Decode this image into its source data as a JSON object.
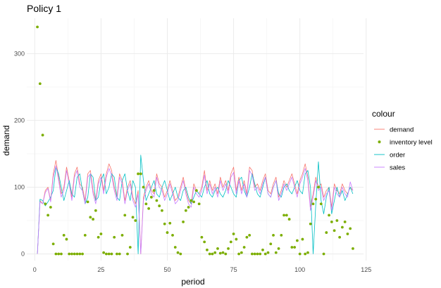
{
  "chart_data": {
    "type": "line",
    "title": "Policy 1",
    "xlabel": "period",
    "ylabel": "demand",
    "xlim": [
      -3,
      124
    ],
    "ylim": [
      -10,
      353
    ],
    "x_ticks": [
      0,
      25,
      50,
      75,
      100,
      125
    ],
    "y_ticks": [
      0,
      100,
      200,
      300
    ],
    "grid": true,
    "legend_title": "colour",
    "legend_position": "right",
    "series": [
      {
        "name": "demand",
        "type": "line",
        "color": "#F8766D",
        "x": [
          1,
          2,
          3,
          4,
          5,
          6,
          7,
          8,
          9,
          10,
          11,
          12,
          13,
          14,
          15,
          16,
          17,
          18,
          19,
          20,
          21,
          22,
          23,
          24,
          25,
          26,
          27,
          28,
          29,
          30,
          31,
          32,
          33,
          34,
          35,
          36,
          37,
          38,
          39,
          40,
          41,
          42,
          43,
          44,
          45,
          46,
          47,
          48,
          49,
          50,
          51,
          52,
          53,
          54,
          55,
          56,
          57,
          58,
          59,
          60,
          61,
          62,
          63,
          64,
          65,
          66,
          67,
          68,
          69,
          70,
          71,
          72,
          73,
          74,
          75,
          76,
          77,
          78,
          79,
          80,
          81,
          82,
          83,
          84,
          85,
          86,
          87,
          88,
          89,
          90,
          91,
          92,
          93,
          94,
          95,
          96,
          97,
          98,
          99,
          100,
          101,
          102,
          103,
          104,
          105,
          106,
          107,
          108,
          109,
          110,
          111,
          112,
          113,
          114,
          115,
          116,
          117,
          118,
          119,
          120
        ],
        "y": [
          0,
          80,
          75,
          95,
          100,
          80,
          120,
          140,
          115,
          90,
          100,
          130,
          110,
          85,
          120,
          130,
          105,
          100,
          80,
          120,
          125,
          95,
          80,
          110,
          120,
          95,
          120,
          135,
          125,
          100,
          85,
          120,
          110,
          80,
          100,
          110,
          85,
          75,
          95,
          0,
          85,
          100,
          110,
          95,
          90,
          120,
          105,
          100,
          85,
          95,
          110,
          95,
          80,
          85,
          100,
          115,
          95,
          80,
          75,
          105,
          95,
          90,
          100,
          125,
          95,
          110,
          95,
          105,
          90,
          115,
          100,
          110,
          95,
          120,
          130,
          95,
          115,
          95,
          110,
          90,
          130,
          125,
          100,
          105,
          95,
          110,
          120,
          95,
          90,
          105,
          115,
          85,
          95,
          110,
          100,
          110,
          120,
          105,
          90,
          110,
          120,
          135,
          115,
          70,
          90,
          115,
          100,
          105,
          85,
          95,
          100,
          70,
          105,
          95,
          90,
          105,
          95,
          90,
          100,
          95
        ]
      },
      {
        "name": "inventory level",
        "type": "scatter",
        "color": "#7CAE00",
        "x": [
          1,
          2,
          3,
          4,
          5,
          6,
          7,
          8,
          9,
          10,
          11,
          12,
          13,
          14,
          15,
          16,
          17,
          18,
          19,
          20,
          21,
          22,
          23,
          24,
          25,
          26,
          27,
          28,
          29,
          30,
          31,
          32,
          33,
          34,
          35,
          36,
          37,
          38,
          39,
          40,
          41,
          42,
          43,
          44,
          45,
          46,
          47,
          48,
          49,
          50,
          51,
          52,
          53,
          54,
          55,
          56,
          57,
          58,
          59,
          60,
          61,
          62,
          63,
          64,
          65,
          66,
          67,
          68,
          69,
          70,
          71,
          72,
          73,
          74,
          75,
          76,
          77,
          78,
          79,
          80,
          81,
          82,
          83,
          84,
          85,
          86,
          87,
          88,
          89,
          90,
          91,
          92,
          93,
          94,
          95,
          96,
          97,
          98,
          99,
          100,
          101,
          102,
          103,
          104,
          105,
          106,
          107,
          108,
          109,
          110,
          111,
          112,
          113,
          114,
          115,
          116,
          117,
          118,
          119,
          120
        ],
        "y": [
          340,
          255,
          178,
          75,
          58,
          70,
          15,
          0,
          0,
          0,
          28,
          22,
          0,
          0,
          0,
          0,
          0,
          0,
          28,
          78,
          55,
          52,
          65,
          25,
          30,
          2,
          0,
          0,
          0,
          25,
          0,
          0,
          28,
          58,
          0,
          10,
          55,
          50,
          120,
          120,
          100,
          75,
          68,
          85,
          95,
          80,
          72,
          65,
          45,
          32,
          46,
          28,
          10,
          2,
          0,
          48,
          65,
          70,
          80,
          78,
          95,
          75,
          25,
          18,
          6,
          0,
          0,
          2,
          8,
          1,
          2,
          0,
          8,
          18,
          30,
          22,
          0,
          2,
          10,
          25,
          28,
          0,
          0,
          0,
          0,
          6,
          0,
          2,
          15,
          28,
          2,
          8,
          28,
          58,
          58,
          52,
          10,
          10,
          20,
          0,
          22,
          0,
          2,
          45,
          75,
          82,
          100,
          75,
          0,
          32,
          58,
          48,
          35,
          50,
          25,
          40,
          48,
          30,
          38,
          8
        ]
      },
      {
        "name": "order",
        "type": "line",
        "color": "#00BFC4",
        "x": [
          1,
          2,
          3,
          4,
          5,
          6,
          7,
          8,
          9,
          10,
          11,
          12,
          13,
          14,
          15,
          16,
          17,
          18,
          19,
          20,
          21,
          22,
          23,
          24,
          25,
          26,
          27,
          28,
          29,
          30,
          31,
          32,
          33,
          34,
          35,
          36,
          37,
          38,
          39,
          40,
          41,
          42,
          43,
          44,
          45,
          46,
          47,
          48,
          49,
          50,
          51,
          52,
          53,
          54,
          55,
          56,
          57,
          58,
          59,
          60,
          61,
          62,
          63,
          64,
          65,
          66,
          67,
          68,
          69,
          70,
          71,
          72,
          73,
          74,
          75,
          76,
          77,
          78,
          79,
          80,
          81,
          82,
          83,
          84,
          85,
          86,
          87,
          88,
          89,
          90,
          91,
          92,
          93,
          94,
          95,
          96,
          97,
          98,
          99,
          100,
          101,
          102,
          103,
          104,
          105,
          106,
          107,
          108,
          109,
          110,
          111,
          112,
          113,
          114,
          115,
          116,
          117,
          118,
          119,
          120
        ],
        "y": [
          0,
          82,
          80,
          72,
          78,
          85,
          95,
          130,
          120,
          100,
          80,
          95,
          110,
          90,
          85,
          115,
          120,
          95,
          75,
          85,
          120,
          115,
          80,
          85,
          110,
          120,
          90,
          100,
          120,
          115,
          85,
          80,
          110,
          120,
          95,
          80,
          110,
          100,
          0,
          148,
          110,
          80,
          90,
          100,
          110,
          90,
          85,
          100,
          110,
          95,
          80,
          90,
          100,
          85,
          80,
          95,
          100,
          85,
          75,
          85,
          95,
          90,
          85,
          100,
          110,
          90,
          85,
          95,
          100,
          90,
          85,
          95,
          110,
          100,
          90,
          85,
          110,
          115,
          95,
          85,
          100,
          120,
          105,
          90,
          85,
          100,
          115,
          90,
          85,
          100,
          110,
          90,
          85,
          100,
          105,
          95,
          90,
          100,
          110,
          95,
          90,
          120,
          125,
          100,
          0,
          75,
          138,
          80,
          60,
          85,
          100,
          60,
          80,
          100,
          85,
          95,
          80,
          90,
          100,
          90
        ]
      },
      {
        "name": "sales",
        "type": "line",
        "color": "#C77CFF",
        "x": [
          1,
          2,
          3,
          4,
          5,
          6,
          7,
          8,
          9,
          10,
          11,
          12,
          13,
          14,
          15,
          16,
          17,
          18,
          19,
          20,
          21,
          22,
          23,
          24,
          25,
          26,
          27,
          28,
          29,
          30,
          31,
          32,
          33,
          34,
          35,
          36,
          37,
          38,
          39,
          40,
          41,
          42,
          43,
          44,
          45,
          46,
          47,
          48,
          49,
          50,
          51,
          52,
          53,
          54,
          55,
          56,
          57,
          58,
          59,
          60,
          61,
          62,
          63,
          64,
          65,
          66,
          67,
          68,
          69,
          70,
          71,
          72,
          73,
          74,
          75,
          76,
          77,
          78,
          79,
          80,
          81,
          82,
          83,
          84,
          85,
          86,
          87,
          88,
          89,
          90,
          91,
          92,
          93,
          94,
          95,
          96,
          97,
          98,
          99,
          100,
          101,
          102,
          103,
          104,
          105,
          106,
          107,
          108,
          109,
          110,
          111,
          112,
          113,
          114,
          115,
          116,
          117,
          118,
          119,
          120
        ],
        "y": [
          0,
          78,
          75,
          92,
          98,
          78,
          115,
          132,
          110,
          85,
          95,
          125,
          105,
          80,
          115,
          125,
          100,
          95,
          75,
          115,
          120,
          90,
          75,
          105,
          115,
          90,
          115,
          128,
          118,
          95,
          80,
          115,
          105,
          75,
          95,
          105,
          80,
          70,
          90,
          0,
          80,
          95,
          105,
          90,
          85,
          115,
          100,
          95,
          80,
          90,
          105,
          90,
          75,
          80,
          95,
          110,
          90,
          75,
          70,
          100,
          90,
          85,
          95,
          118,
          90,
          105,
          90,
          100,
          85,
          110,
          95,
          105,
          90,
          115,
          122,
          90,
          110,
          90,
          105,
          85,
          125,
          118,
          95,
          100,
          90,
          105,
          115,
          90,
          85,
          100,
          110,
          80,
          90,
          105,
          95,
          105,
          115,
          100,
          85,
          105,
          115,
          128,
          110,
          65,
          85,
          110,
          95,
          100,
          80,
          90,
          95,
          65,
          100,
          90,
          85,
          100,
          90,
          85,
          108,
          95
        ]
      }
    ]
  }
}
